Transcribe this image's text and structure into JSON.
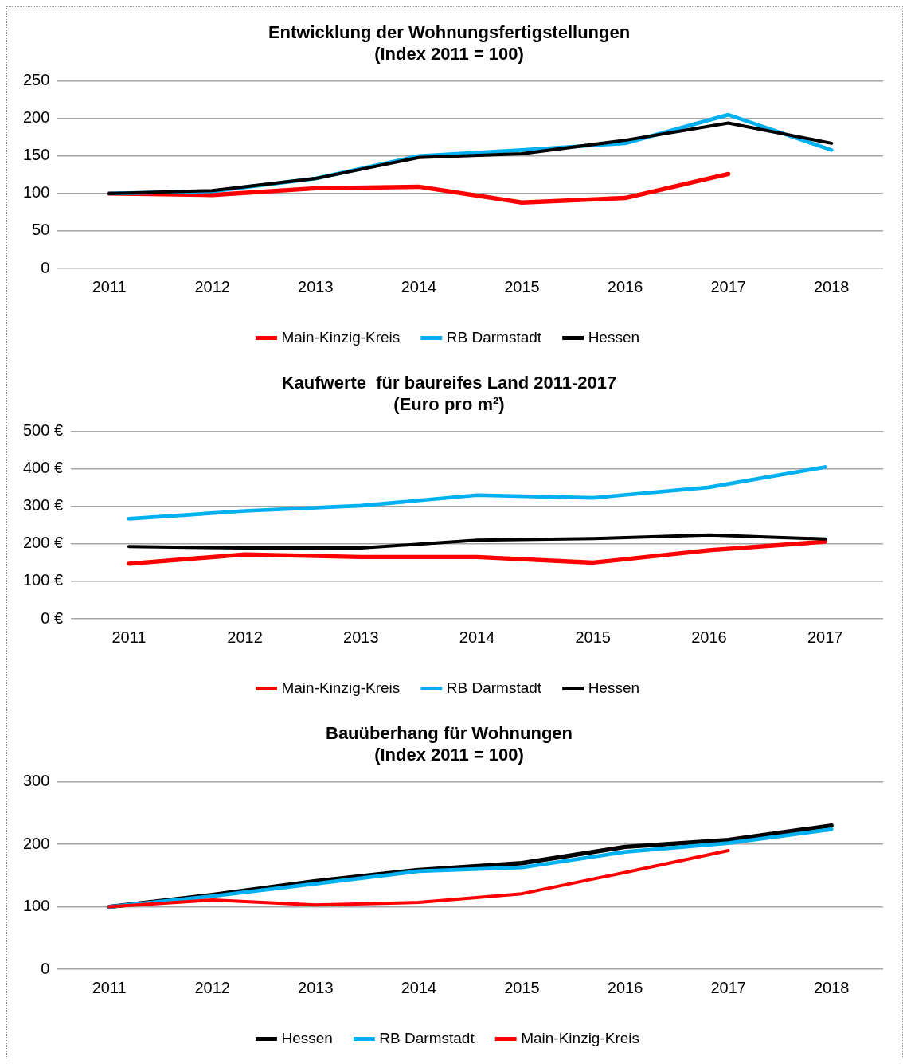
{
  "chart_data": [
    {
      "type": "line",
      "title": "Entwicklung der Wohnungsfertigstellungen\n(Index 2011 = 100)",
      "categories": [
        "2011",
        "2012",
        "2013",
        "2014",
        "2015",
        "2016",
        "2017",
        "2018"
      ],
      "series": [
        {
          "name": "Main-Kinzig-Kreis",
          "color": "#ff0000",
          "values": [
            100,
            98,
            107,
            109,
            88,
            94,
            126,
            null
          ]
        },
        {
          "name": "RB Darmstadt",
          "color": "#00b0f0",
          "values": [
            100,
            103,
            120,
            150,
            158,
            167,
            205,
            158
          ]
        },
        {
          "name": "Hessen",
          "color": "#000000",
          "values": [
            100,
            104,
            120,
            148,
            153,
            171,
            194,
            167
          ]
        }
      ],
      "ylim": [
        0,
        250
      ],
      "yticks": [
        0,
        50,
        100,
        150,
        200,
        250
      ],
      "grid": "y",
      "legend": "bottom",
      "marker": "none",
      "line_style": "solid"
    },
    {
      "type": "line",
      "title": "Kaufwerte  für baureifes Land 2011-2017\n(Euro pro m²)",
      "categories": [
        "2011",
        "2012",
        "2013",
        "2014",
        "2015",
        "2016",
        "2017"
      ],
      "series": [
        {
          "name": "Main-Kinzig-Kreis",
          "color": "#ff0000",
          "values": [
            147,
            172,
            165,
            165,
            150,
            183,
            206
          ]
        },
        {
          "name": "RB Darmstadt",
          "color": "#00b0f0",
          "values": [
            267,
            288,
            302,
            330,
            323,
            351,
            405
          ]
        },
        {
          "name": "Hessen",
          "color": "#000000",
          "values": [
            193,
            189,
            189,
            210,
            214,
            224,
            213
          ]
        }
      ],
      "ylim": [
        0,
        500
      ],
      "yticks": [
        {
          "value": 0,
          "label": "0 €"
        },
        {
          "value": 100,
          "label": "100 €"
        },
        {
          "value": 200,
          "label": "200 €"
        },
        {
          "value": 300,
          "label": "300 €"
        },
        {
          "value": 400,
          "label": "400 €"
        },
        {
          "value": 500,
          "label": "500 €"
        }
      ],
      "grid": "y",
      "legend": "bottom",
      "marker": "none",
      "line_style": "solid"
    },
    {
      "type": "line",
      "title": "Bauüberhang für Wohnungen\n(Index 2011 = 100)",
      "categories": [
        "2011",
        "2012",
        "2013",
        "2014",
        "2015",
        "2016",
        "2017",
        "2018"
      ],
      "series": [
        {
          "name": "Hessen",
          "color": "#000000",
          "values": [
            100,
            119,
            141,
            159,
            170,
            196,
            207,
            230
          ]
        },
        {
          "name": "RB Darmstadt",
          "color": "#00b0f0",
          "values": [
            100,
            117,
            137,
            157,
            163,
            188,
            202,
            224
          ]
        },
        {
          "name": "Main-Kinzig-Kreis",
          "color": "#ff0000",
          "values": [
            100,
            111,
            103,
            107,
            121,
            155,
            190,
            null
          ]
        }
      ],
      "ylim": [
        0,
        300
      ],
      "yticks": [
        0,
        100,
        200,
        300
      ],
      "grid": "y",
      "legend": "bottom",
      "marker": "none",
      "line_style": "solid"
    }
  ]
}
